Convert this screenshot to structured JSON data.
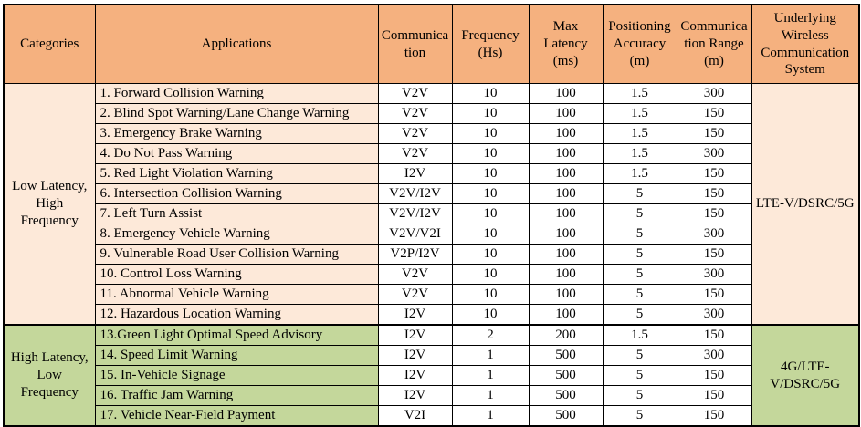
{
  "theme": {
    "header_bg": "#f5b17f",
    "low_latency_group_bg": "#fde9d9",
    "high_latency_group_bg": "#c4d79b",
    "data_cell_bg": "#ffffff",
    "border_color": "#000000"
  },
  "table": {
    "headers": [
      "Categories",
      "Applications",
      "Communication",
      "Frequency (Hs)",
      "Max Latency (ms)",
      "Positioning Accuracy (m)",
      "Communication Range (m)",
      "Underlying Wireless Communication System"
    ],
    "groups": [
      {
        "category": "Low Latency, High Frequency",
        "wireless_system": "LTE-V/DSRC/5G",
        "rows": [
          {
            "application": "1. Forward Collision Warning",
            "communication": "V2V",
            "frequency": "10",
            "max_latency": "100",
            "positioning_accuracy": "1.5",
            "communication_range": "300"
          },
          {
            "application": "2. Blind Spot Warning/Lane Change Warning",
            "communication": "V2V",
            "frequency": "10",
            "max_latency": "100",
            "positioning_accuracy": "1.5",
            "communication_range": "150"
          },
          {
            "application": "3. Emergency Brake Warning",
            "communication": "V2V",
            "frequency": "10",
            "max_latency": "100",
            "positioning_accuracy": "1.5",
            "communication_range": "150"
          },
          {
            "application": "4. Do Not Pass Warning",
            "communication": "V2V",
            "frequency": "10",
            "max_latency": "100",
            "positioning_accuracy": "1.5",
            "communication_range": "300"
          },
          {
            "application": "5. Red Light Violation Warning",
            "communication": "I2V",
            "frequency": "10",
            "max_latency": "100",
            "positioning_accuracy": "1.5",
            "communication_range": "150"
          },
          {
            "application": "6. Intersection Collision Warning",
            "communication": "V2V/I2V",
            "frequency": "10",
            "max_latency": "100",
            "positioning_accuracy": "5",
            "communication_range": "150"
          },
          {
            "application": "7. Left Turn Assist",
            "communication": "V2V/I2V",
            "frequency": "10",
            "max_latency": "100",
            "positioning_accuracy": "5",
            "communication_range": "150"
          },
          {
            "application": "8. Emergency Vehicle Warning",
            "communication": "V2V/V2I",
            "frequency": "10",
            "max_latency": "100",
            "positioning_accuracy": "5",
            "communication_range": "300"
          },
          {
            "application": "9. Vulnerable Road User Collision Warning",
            "communication": "V2P/I2V",
            "frequency": "10",
            "max_latency": "100",
            "positioning_accuracy": "5",
            "communication_range": "150"
          },
          {
            "application": "10. Control Loss Warning",
            "communication": "V2V",
            "frequency": "10",
            "max_latency": "100",
            "positioning_accuracy": "5",
            "communication_range": "300"
          },
          {
            "application": "11. Abnormal Vehicle Warning",
            "communication": "V2V",
            "frequency": "10",
            "max_latency": "100",
            "positioning_accuracy": "5",
            "communication_range": "150"
          },
          {
            "application": "12. Hazardous Location Warning",
            "communication": "I2V",
            "frequency": "10",
            "max_latency": "100",
            "positioning_accuracy": "5",
            "communication_range": "300"
          }
        ]
      },
      {
        "category": "High Latency, Low Frequency",
        "wireless_system": "4G/LTE-V/DSRC/5G",
        "rows": [
          {
            "application": "13.Green Light Optimal Speed Advisory",
            "communication": "I2V",
            "frequency": "2",
            "max_latency": "200",
            "positioning_accuracy": "1.5",
            "communication_range": "150"
          },
          {
            "application": "14. Speed Limit Warning",
            "communication": "I2V",
            "frequency": "1",
            "max_latency": "500",
            "positioning_accuracy": "5",
            "communication_range": "300"
          },
          {
            "application": "15. In-Vehicle Signage",
            "communication": "I2V",
            "frequency": "1",
            "max_latency": "500",
            "positioning_accuracy": "5",
            "communication_range": "150"
          },
          {
            "application": "16. Traffic Jam Warning",
            "communication": "I2V",
            "frequency": "1",
            "max_latency": "500",
            "positioning_accuracy": "5",
            "communication_range": "150"
          },
          {
            "application": "17. Vehicle Near-Field Payment",
            "communication": "V2I",
            "frequency": "1",
            "max_latency": "500",
            "positioning_accuracy": "5",
            "communication_range": "150"
          }
        ]
      }
    ]
  }
}
